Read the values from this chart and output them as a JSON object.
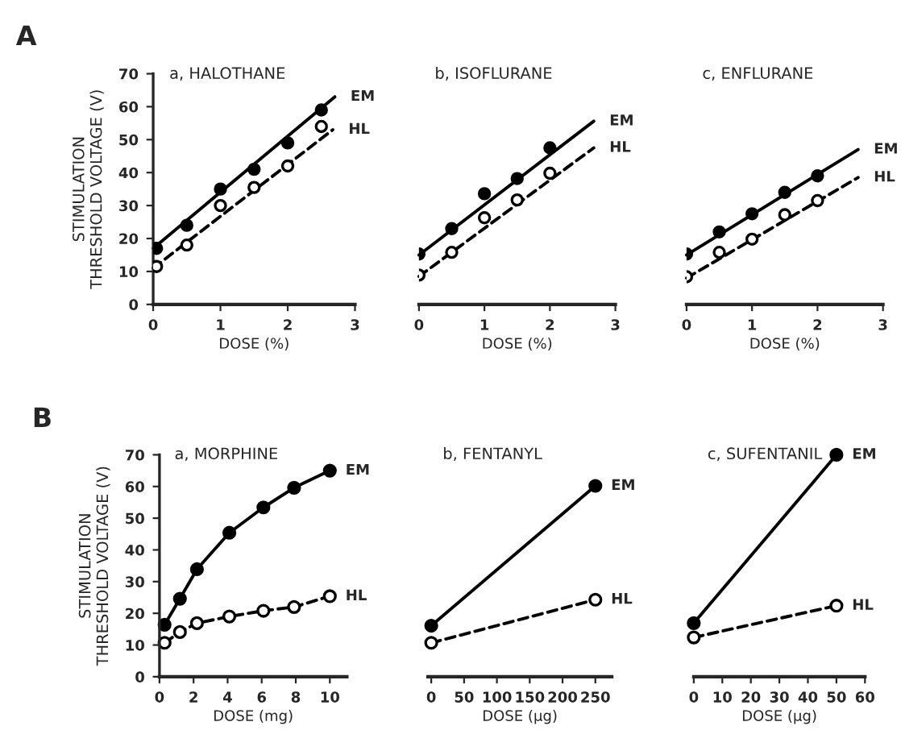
{
  "chart_data": [
    {
      "type": "line",
      "title": "a, HALOTHANE",
      "xlabel": "DOSE (%)",
      "ylabel": "STIMULATION\nTHRESHOLD VOLTAGE (V)",
      "annotations": [
        "A"
      ],
      "xlim": [
        0,
        3
      ],
      "xticks": [
        0,
        1,
        2,
        3
      ],
      "ylim": [
        0,
        70
      ],
      "yticks": [
        0,
        10,
        20,
        30,
        40,
        50,
        60,
        70
      ],
      "legend": false,
      "series": [
        {
          "type": "scatter",
          "marker": "circle",
          "line_style": "solid",
          "color": "#000000",
          "x": [
            0.05,
            0.5,
            1,
            1.5,
            2,
            2.5
          ],
          "values": [
            17,
            24,
            35,
            41,
            49,
            59
          ]
        },
        {
          "type": "scatter",
          "marker": "circle",
          "line_style": "dashed",
          "color": "#000000",
          "x": [
            0.05,
            0.5,
            1,
            1.5,
            2,
            2.5
          ],
          "values": [
            11.5,
            18,
            30,
            35.5,
            42,
            54
          ]
        },
        {
          "type": "line",
          "name": "EM",
          "marker": "none",
          "line_style": "solid",
          "color": "#000000",
          "x": [
            0,
            2.7
          ],
          "values": [
            17,
            63
          ]
        },
        {
          "type": "line",
          "name": "HL",
          "marker": "none",
          "line_style": "dashed",
          "color": "#000000",
          "x": [
            0,
            2.67
          ],
          "values": [
            11,
            53
          ]
        }
      ]
    },
    {
      "type": "line",
      "title": "b, ISOFLURANE",
      "xlabel": "DOSE (%)",
      "xlim": [
        0,
        3
      ],
      "xticks": [
        0,
        1,
        2,
        3
      ],
      "ylim": [
        0,
        70
      ],
      "tick_labels": "x",
      "legend": false,
      "series": [
        {
          "type": "scatter",
          "marker": "circle",
          "line_style": "solid",
          "color": "#000000",
          "x": [
            0,
            0.5,
            1,
            1.5,
            2
          ],
          "values": [
            15.3,
            23,
            33.6,
            38.2,
            47.5
          ]
        },
        {
          "type": "scatter",
          "marker": "circle",
          "line_style": "dashed",
          "color": "#000000",
          "x": [
            0,
            0.5,
            1,
            1.5,
            2
          ],
          "values": [
            8.9,
            15.8,
            26.3,
            31.7,
            39.8
          ]
        },
        {
          "type": "line",
          "name": "EM",
          "marker": "none",
          "line_style": "solid",
          "color": "#000000",
          "x": [
            0,
            2.67
          ],
          "values": [
            15,
            55.6
          ]
        },
        {
          "type": "line",
          "name": "HL",
          "marker": "none",
          "line_style": "dashed",
          "color": "#000000",
          "x": [
            0,
            2.67
          ],
          "values": [
            8.5,
            47.5
          ]
        }
      ]
    },
    {
      "type": "line",
      "title": "c, ENFLURANE",
      "xlabel": "DOSE (%)",
      "xlim": [
        0,
        3
      ],
      "xticks": [
        0,
        1,
        2,
        3
      ],
      "ylim": [
        0,
        70
      ],
      "tick_labels": "x",
      "legend": false,
      "series": [
        {
          "type": "scatter",
          "marker": "circle",
          "line_style": "solid",
          "color": "#000000",
          "x": [
            0,
            0.5,
            1,
            1.5,
            2
          ],
          "values": [
            15.3,
            22,
            27.5,
            34,
            39
          ]
        },
        {
          "type": "scatter",
          "marker": "circle",
          "line_style": "dashed",
          "color": "#000000",
          "x": [
            0,
            0.5,
            1,
            1.5,
            2
          ],
          "values": [
            8.4,
            15.8,
            19.8,
            27.2,
            31.5
          ]
        },
        {
          "type": "line",
          "name": "EM",
          "marker": "none",
          "line_style": "solid",
          "color": "#000000",
          "x": [
            0,
            2.62
          ],
          "values": [
            15,
            47
          ]
        },
        {
          "type": "line",
          "name": "HL",
          "marker": "none",
          "line_style": "dashed",
          "color": "#000000",
          "x": [
            0,
            2.62
          ],
          "values": [
            8,
            38.5
          ]
        }
      ]
    },
    {
      "type": "line",
      "title": "a, MORPHINE",
      "xlabel": "DOSE (mg)",
      "ylabel": "STIMULATION\nTHRESHOLD VOLTAGE (V)",
      "annotations": [
        "B"
      ],
      "xlim": [
        0,
        11
      ],
      "xticks": [
        0,
        2,
        4,
        6,
        8,
        10
      ],
      "ylim": [
        0,
        70
      ],
      "yticks": [
        0,
        10,
        20,
        30,
        40,
        50,
        60,
        70
      ],
      "legend": false,
      "series": [
        {
          "type": "line",
          "name": "EM",
          "marker": "circle",
          "line_style": "solid",
          "color": "#000000",
          "x": [
            0.3,
            1.2,
            2.2,
            4.1,
            6.1,
            7.9,
            10
          ],
          "values": [
            16.4,
            24.6,
            33.9,
            45.4,
            53.4,
            59.6,
            65
          ]
        },
        {
          "type": "line",
          "name": "HL",
          "marker": "circle",
          "line_style": "dashed",
          "color": "#000000",
          "x": [
            0.3,
            1.2,
            2.2,
            4.1,
            6.1,
            7.9,
            10
          ],
          "values": [
            10.7,
            14.1,
            16.9,
            19,
            20.8,
            22,
            25.4
          ]
        }
      ]
    },
    {
      "type": "line",
      "title": "b, FENTANYL",
      "xlabel": "DOSE (μg)",
      "xlim": [
        -5,
        275
      ],
      "xticks": [
        0,
        50,
        100,
        150,
        200,
        250
      ],
      "ylim": [
        0,
        70
      ],
      "tick_labels": "x",
      "legend": false,
      "series": [
        {
          "type": "line",
          "name": "EM",
          "marker": "circle",
          "line_style": "solid",
          "color": "#000000",
          "x": [
            0,
            250
          ],
          "values": [
            16.1,
            60.2
          ]
        },
        {
          "type": "line",
          "name": "HL",
          "marker": "circle",
          "line_style": "dashed",
          "color": "#000000",
          "x": [
            0,
            250
          ],
          "values": [
            10.7,
            24.3
          ]
        }
      ]
    },
    {
      "type": "line",
      "title": "c, SUFENTANIL",
      "xlabel": "DOSE (μg)",
      "xlim": [
        0,
        60
      ],
      "xticks": [
        0,
        10,
        20,
        30,
        40,
        50,
        60
      ],
      "ylim": [
        0,
        70
      ],
      "tick_labels": "x",
      "legend": false,
      "series": [
        {
          "type": "line",
          "name": "EM",
          "marker": "circle",
          "line_style": "solid",
          "color": "#000000",
          "x": [
            0,
            50
          ],
          "values": [
            16.9,
            70
          ]
        },
        {
          "type": "line",
          "name": "HL",
          "marker": "circle",
          "line_style": "dashed",
          "color": "#000000",
          "x": [
            0,
            50
          ],
          "values": [
            12.4,
            22.4
          ]
        }
      ]
    }
  ]
}
